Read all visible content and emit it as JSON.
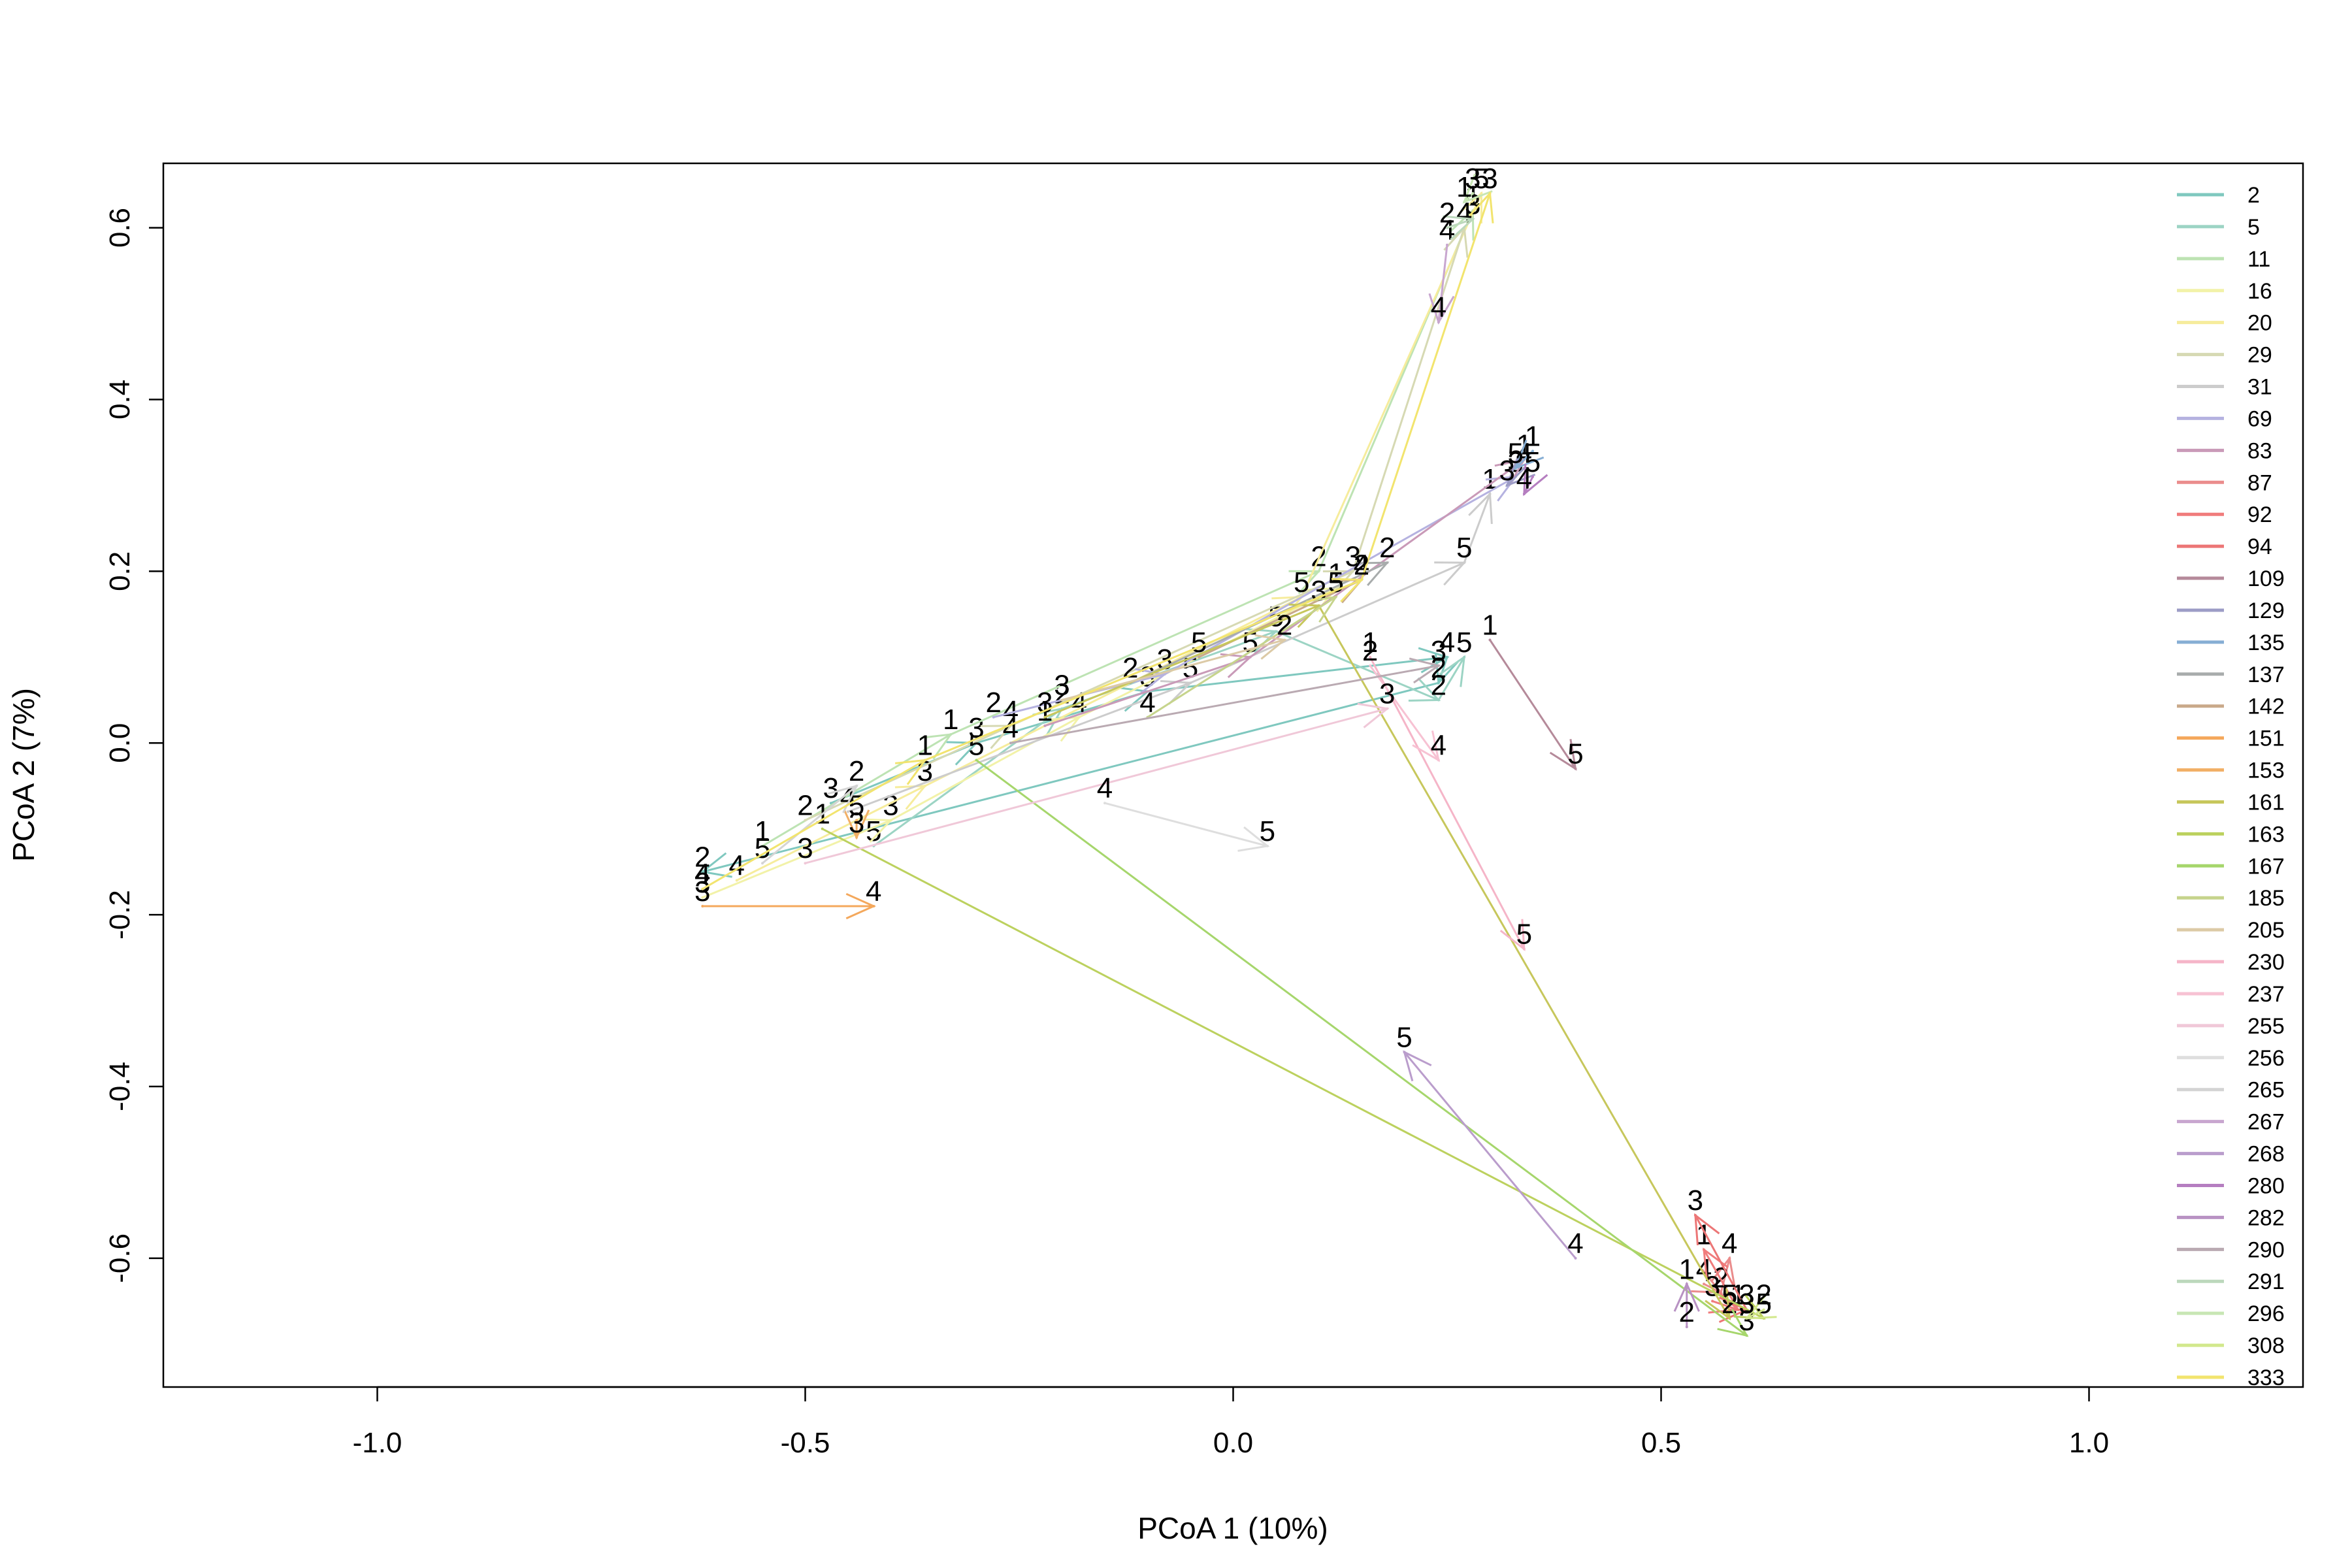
{
  "chart_data": {
    "type": "scatter",
    "title": "",
    "xlabel": "PCoA 1 (10%)",
    "ylabel": "PCoA 2 (7%)",
    "xlim": [
      -1.25,
      1.25
    ],
    "ylim": [
      -0.75,
      0.675
    ],
    "xticks": [
      -1.0,
      -0.5,
      0.0,
      0.5,
      1.0
    ],
    "xtick_labels": [
      "-1.0",
      "-0.5",
      "0.0",
      "0.5",
      "1.0"
    ],
    "yticks": [
      -0.6,
      -0.4,
      -0.2,
      0.0,
      0.2,
      0.4,
      0.6
    ],
    "ytick_labels": [
      "-0.6",
      "-0.4",
      "-0.2",
      "0.0",
      "0.2",
      "0.4",
      "0.6"
    ],
    "grid": false,
    "legend_position": "top-right",
    "series": [
      {
        "name": "2",
        "color": "#7fc8bf",
        "points": [
          [
            -0.47,
            -0.07,
            "3"
          ],
          [
            -0.3,
            0.0,
            "3"
          ],
          [
            -0.1,
            0.06,
            "3"
          ],
          [
            0.25,
            0.1,
            "4"
          ],
          [
            0.24,
            0.07,
            "2"
          ],
          [
            -0.62,
            -0.15,
            "2"
          ]
        ]
      },
      {
        "name": "5",
        "color": "#9cd4c4",
        "points": [
          [
            -0.42,
            -0.12,
            "5"
          ],
          [
            -0.2,
            0.04,
            "2"
          ],
          [
            0.05,
            0.13,
            "5"
          ],
          [
            0.24,
            0.05,
            "2"
          ],
          [
            0.27,
            0.1,
            "5"
          ]
        ]
      },
      {
        "name": "11",
        "color": "#bde3b3",
        "points": [
          [
            -0.55,
            -0.12,
            "1"
          ],
          [
            -0.33,
            0.01,
            "1"
          ],
          [
            0.1,
            0.2,
            "2"
          ],
          [
            0.28,
            0.62,
            "1"
          ]
        ]
      },
      {
        "name": "16",
        "color": "#f2f2a8",
        "points": [
          [
            -0.62,
            -0.18,
            "3"
          ],
          [
            -0.4,
            -0.09,
            "3"
          ],
          [
            -0.18,
            0.03,
            "4"
          ],
          [
            0.12,
            0.18,
            "1"
          ]
        ]
      },
      {
        "name": "20",
        "color": "#f6ec9c",
        "points": [
          [
            -0.58,
            -0.16,
            "4"
          ],
          [
            -0.36,
            -0.05,
            "3"
          ],
          [
            0.08,
            0.17,
            "5"
          ],
          [
            0.29,
            0.64,
            "5"
          ]
        ]
      },
      {
        "name": "29",
        "color": "#d6d9b3",
        "points": [
          [
            -0.5,
            -0.09,
            "2"
          ],
          [
            -0.26,
            0.02,
            "4"
          ],
          [
            0.14,
            0.2,
            "3"
          ],
          [
            0.27,
            0.6,
            "4"
          ]
        ]
      },
      {
        "name": "31",
        "color": "#cccccc",
        "points": [
          [
            -0.45,
            -0.08,
            "4"
          ],
          [
            -0.05,
            0.07,
            "5"
          ],
          [
            0.27,
            0.21,
            "5"
          ],
          [
            0.3,
            0.29,
            "1"
          ]
        ]
      },
      {
        "name": "69",
        "color": "#b5b2e0",
        "points": [
          [
            -0.28,
            0.03,
            "2"
          ],
          [
            -0.08,
            0.08,
            "3"
          ],
          [
            0.33,
            0.31,
            "3"
          ]
        ]
      },
      {
        "name": "83",
        "color": "#c99ab8",
        "points": [
          [
            -0.22,
            0.02,
            "1"
          ],
          [
            0.02,
            0.1,
            "5"
          ],
          [
            0.34,
            0.33,
            "1"
          ]
        ]
      },
      {
        "name": "87",
        "color": "#ea8c8c",
        "points": [
          [
            0.55,
            -0.63,
            "4"
          ],
          [
            0.57,
            -0.64,
            "2"
          ],
          [
            0.58,
            -0.6,
            "4"
          ]
        ]
      },
      {
        "name": "92",
        "color": "#f07c7c",
        "points": [
          [
            0.56,
            -0.65,
            "3"
          ],
          [
            0.59,
            -0.66,
            "1"
          ],
          [
            0.55,
            -0.59,
            "1"
          ]
        ]
      },
      {
        "name": "94",
        "color": "#ec7676",
        "points": [
          [
            0.58,
            -0.66,
            "5"
          ],
          [
            0.6,
            -0.66,
            "3"
          ],
          [
            0.54,
            -0.55,
            "3"
          ]
        ]
      },
      {
        "name": "109",
        "color": "#b58a9a",
        "points": [
          [
            0.3,
            0.12,
            "1"
          ],
          [
            0.4,
            -0.03,
            "5"
          ]
        ]
      },
      {
        "name": "129",
        "color": "#9c9cc6",
        "points": [
          [
            0.34,
            0.32,
            "4"
          ],
          [
            0.32,
            0.3,
            "3"
          ]
        ]
      },
      {
        "name": "135",
        "color": "#86aed4",
        "points": [
          [
            0.35,
            0.34,
            "1"
          ],
          [
            0.33,
            0.32,
            "5"
          ]
        ]
      },
      {
        "name": "137",
        "color": "#a8acac",
        "points": [
          [
            -0.12,
            0.07,
            "2"
          ],
          [
            0.18,
            0.21,
            "2"
          ]
        ]
      },
      {
        "name": "142",
        "color": "#c9a98a",
        "points": [
          [
            -0.04,
            0.1,
            "5"
          ],
          [
            0.15,
            0.19,
            "4"
          ]
        ]
      },
      {
        "name": "151",
        "color": "#f4a85c",
        "points": [
          [
            -0.62,
            -0.19,
            "3"
          ],
          [
            -0.42,
            -0.19,
            "4"
          ]
        ]
      },
      {
        "name": "153",
        "color": "#f2b067",
        "points": [
          [
            -0.44,
            -0.09,
            "5"
          ],
          [
            -0.44,
            -0.11,
            "3"
          ]
        ]
      },
      {
        "name": "161",
        "color": "#c7c75c",
        "points": [
          [
            -0.22,
            0.03,
            "3"
          ],
          [
            0.1,
            0.16,
            "3"
          ],
          [
            0.58,
            -0.67,
            "2"
          ]
        ]
      },
      {
        "name": "163",
        "color": "#bcd15e",
        "points": [
          [
            -0.48,
            -0.1,
            "1"
          ],
          [
            0.62,
            -0.67,
            "5"
          ]
        ]
      },
      {
        "name": "167",
        "color": "#a6d66c",
        "points": [
          [
            -0.3,
            -0.02,
            "5"
          ],
          [
            0.6,
            -0.69,
            "3"
          ]
        ]
      },
      {
        "name": "185",
        "color": "#c6d48c",
        "points": [
          [
            -0.1,
            0.03,
            "4"
          ],
          [
            0.12,
            0.17,
            "5"
          ]
        ]
      },
      {
        "name": "205",
        "color": "#dccaa6",
        "points": [
          [
            -0.2,
            0.05,
            "3"
          ],
          [
            0.06,
            0.12,
            "2"
          ]
        ]
      },
      {
        "name": "230",
        "color": "#f5b5c8",
        "points": [
          [
            0.16,
            0.1,
            "1"
          ],
          [
            0.34,
            -0.24,
            "5"
          ]
        ]
      },
      {
        "name": "237",
        "color": "#f7c2d3",
        "points": [
          [
            0.16,
            0.09,
            "2"
          ],
          [
            0.24,
            -0.02,
            "4"
          ]
        ]
      },
      {
        "name": "255",
        "color": "#f0c8d8",
        "points": [
          [
            -0.5,
            -0.14,
            "3"
          ],
          [
            0.18,
            0.04,
            "3"
          ]
        ]
      },
      {
        "name": "256",
        "color": "#dedede",
        "points": [
          [
            -0.15,
            -0.07,
            "4"
          ],
          [
            0.04,
            -0.12,
            "5"
          ]
        ]
      },
      {
        "name": "265",
        "color": "#d4d4d4",
        "points": [
          [
            -0.55,
            -0.14,
            "5"
          ],
          [
            -0.44,
            -0.05,
            "2"
          ]
        ]
      },
      {
        "name": "267",
        "color": "#c8a6cf",
        "points": [
          [
            0.25,
            0.58,
            "4"
          ],
          [
            0.24,
            0.49,
            "4"
          ]
        ]
      },
      {
        "name": "268",
        "color": "#ba9dcc",
        "points": [
          [
            0.4,
            -0.6,
            "4"
          ],
          [
            0.2,
            -0.36,
            "5"
          ]
        ]
      },
      {
        "name": "280",
        "color": "#b57ec0",
        "points": [
          [
            0.35,
            0.31,
            "5"
          ],
          [
            0.34,
            0.29,
            "4"
          ]
        ]
      },
      {
        "name": "282",
        "color": "#b892c3",
        "points": [
          [
            0.53,
            -0.68,
            "2"
          ],
          [
            0.53,
            -0.63,
            "1"
          ]
        ]
      },
      {
        "name": "290",
        "color": "#baaab2",
        "points": [
          [
            -0.26,
            0.0,
            "4"
          ],
          [
            0.24,
            0.09,
            "3"
          ]
        ]
      },
      {
        "name": "291",
        "color": "#bcd8bc",
        "points": [
          [
            0.25,
            0.6,
            "2"
          ],
          [
            0.28,
            0.61,
            "3"
          ]
        ]
      },
      {
        "name": "296",
        "color": "#c8e6b4",
        "points": [
          [
            0.28,
            0.64,
            "3"
          ],
          [
            0.27,
            0.63,
            "1"
          ]
        ]
      },
      {
        "name": "308",
        "color": "#d2e88c",
        "points": [
          [
            0.62,
            -0.66,
            "2"
          ],
          [
            0.6,
            -0.67,
            "3"
          ]
        ]
      },
      {
        "name": "333",
        "color": "#f2e46e",
        "points": [
          [
            -0.62,
            -0.17,
            "4"
          ],
          [
            -0.36,
            -0.02,
            "1"
          ],
          [
            0.15,
            0.19,
            "2"
          ],
          [
            0.3,
            0.64,
            "3"
          ]
        ]
      }
    ]
  }
}
